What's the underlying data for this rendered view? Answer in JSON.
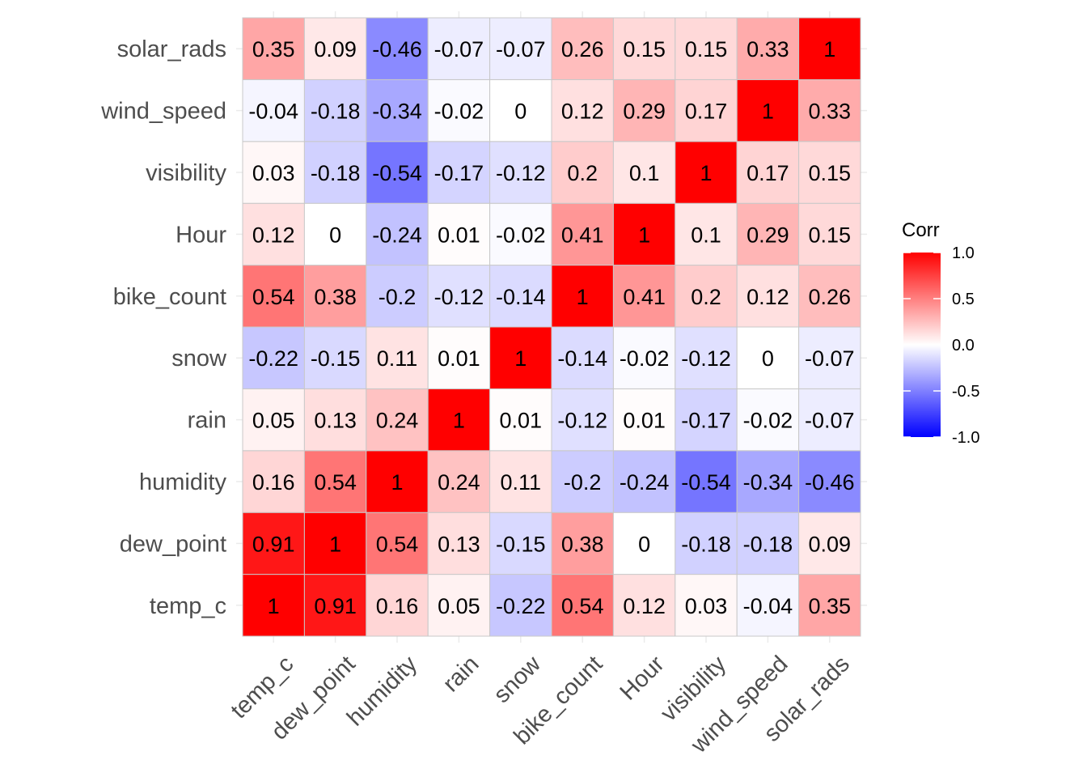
{
  "chart_data": {
    "type": "heatmap",
    "variables": [
      "temp_c",
      "dew_point",
      "humidity",
      "rain",
      "snow",
      "bike_count",
      "Hour",
      "visibility",
      "wind_speed",
      "solar_rads"
    ],
    "matrix": [
      [
        1,
        0.91,
        0.16,
        0.05,
        -0.22,
        0.54,
        0.12,
        0.03,
        -0.04,
        0.35
      ],
      [
        0.91,
        1,
        0.54,
        0.13,
        -0.15,
        0.38,
        0,
        -0.18,
        -0.18,
        0.09
      ],
      [
        0.16,
        0.54,
        1,
        0.24,
        0.11,
        -0.2,
        -0.24,
        -0.54,
        -0.34,
        -0.46
      ],
      [
        0.05,
        0.13,
        0.24,
        1,
        0.01,
        -0.12,
        0.01,
        -0.17,
        -0.02,
        -0.07
      ],
      [
        -0.22,
        -0.15,
        0.11,
        0.01,
        1,
        -0.14,
        -0.02,
        -0.12,
        0,
        -0.07
      ],
      [
        0.54,
        0.38,
        -0.2,
        -0.12,
        -0.14,
        1,
        0.41,
        0.2,
        0.12,
        0.26
      ],
      [
        0.12,
        0,
        -0.24,
        0.01,
        -0.02,
        0.41,
        1,
        0.1,
        0.29,
        0.15
      ],
      [
        0.03,
        -0.18,
        -0.54,
        -0.17,
        -0.12,
        0.2,
        0.1,
        1,
        0.17,
        0.15
      ],
      [
        -0.04,
        -0.18,
        -0.34,
        -0.02,
        0,
        0.12,
        0.29,
        0.17,
        1,
        0.33
      ],
      [
        0.35,
        0.09,
        -0.46,
        -0.07,
        -0.07,
        0.26,
        0.15,
        0.15,
        0.33,
        1
      ]
    ],
    "value_range": [
      -1,
      1
    ],
    "colors": {
      "low": "#0000ff",
      "mid": "#ffffff",
      "high": "#ff0000",
      "cell_border": "#c8c8c8"
    },
    "legend": {
      "title": "Corr",
      "ticks": [
        "1.0",
        "0.5",
        "0.0",
        "-0.5",
        "-1.0"
      ],
      "tick_values": [
        1,
        0.5,
        0,
        -0.5,
        -1
      ],
      "placement": "right"
    },
    "grid": true
  }
}
